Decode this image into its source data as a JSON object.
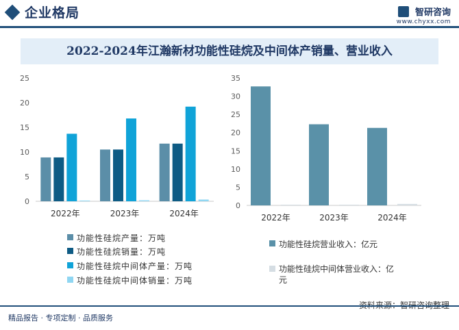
{
  "header": {
    "section_title": "企业格局",
    "brand_name": "智研咨询",
    "brand_url": "www.chyxx.com"
  },
  "chart_title": "2022-2024年江瀚新材功能性硅烷及中间体产销量、营业收入",
  "colors": {
    "primary": "#1f4e79",
    "title_band": "#e3eef8",
    "series": [
      "#5b8ea8",
      "#0e5b84",
      "#10a3d8",
      "#8fd6f2",
      "#5a91a8",
      "#d5dde3"
    ]
  },
  "chart_data": [
    {
      "type": "bar",
      "categories": [
        "2022年",
        "2023年",
        "2024年"
      ],
      "ylim": [
        0,
        25
      ],
      "yticks": [
        0,
        5,
        10,
        15,
        20,
        25
      ],
      "series": [
        {
          "name": "功能性硅烷产量：万吨",
          "values": [
            8.9,
            10.5,
            11.7
          ]
        },
        {
          "name": "功能性硅烷销量：万吨",
          "values": [
            8.9,
            10.5,
            11.7
          ]
        },
        {
          "name": "功能性硅烷中间体产量：万吨",
          "values": [
            13.7,
            16.8,
            19.2
          ]
        },
        {
          "name": "功能性硅烷中间体销量：万吨",
          "values": [
            0.15,
            0.2,
            0.35
          ]
        }
      ]
    },
    {
      "type": "bar",
      "categories": [
        "2022年",
        "2023年",
        "2024年"
      ],
      "ylim": [
        0,
        35
      ],
      "yticks": [
        0,
        5,
        10,
        15,
        20,
        25,
        30,
        35
      ],
      "series": [
        {
          "name": "功能性硅烷营业收入：亿元",
          "values": [
            32.7,
            22.3,
            21.3
          ]
        },
        {
          "name": "功能性硅烷中间体营业收入：亿元",
          "values": [
            0.2,
            0.2,
            0.4
          ]
        }
      ]
    }
  ],
  "source": "资料来源：智研咨询整理",
  "footer": "精品报告 · 专项定制 · 品质服务"
}
